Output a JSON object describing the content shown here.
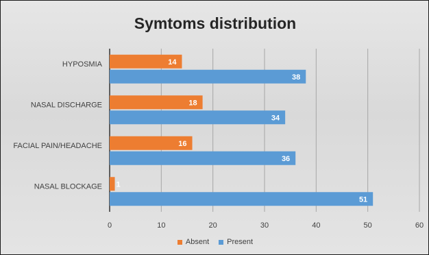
{
  "chart_data": {
    "type": "bar",
    "orientation": "horizontal",
    "title": "Symtoms distribution",
    "xlabel": "",
    "ylabel": "",
    "categories": [
      "HYPOSMIA",
      "NASAL DISCHARGE",
      "FACIAL PAIN/HEADACHE",
      "NASAL BLOCKAGE"
    ],
    "series": [
      {
        "name": "Absent",
        "color": "#ed7d31",
        "values": [
          14,
          18,
          16,
          1
        ]
      },
      {
        "name": "Present",
        "color": "#5b9bd5",
        "values": [
          38,
          34,
          36,
          51
        ]
      }
    ],
    "xlim": [
      0,
      60
    ],
    "xticks": [
      0,
      10,
      20,
      30,
      40,
      50,
      60
    ],
    "grid": "vertical",
    "legend": "bottom",
    "data_labels": true
  }
}
